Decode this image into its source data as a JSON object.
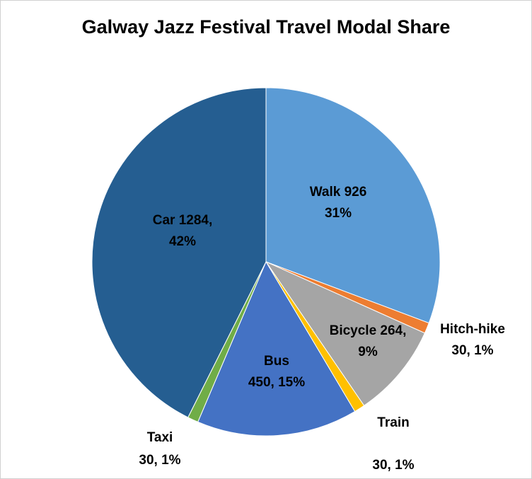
{
  "chart_data": {
    "type": "pie",
    "title": "Galway Jazz Festival Travel Modal Share",
    "values": [
      926,
      30,
      264,
      30,
      450,
      30,
      1284
    ],
    "value_labels": [
      [
        "Walk 926",
        "31%"
      ],
      [
        "Hitch-hike",
        "30, 1%"
      ],
      [
        "Bicycle 264,",
        "9%"
      ],
      [
        "Train",
        "30, 1%"
      ],
      [
        "Bus",
        "450, 15%"
      ],
      [
        "Taxi",
        "30, 1%"
      ],
      [
        "Car 1284,",
        "42%"
      ]
    ],
    "colors": [
      "#5b9bd5",
      "#ed7d31",
      "#a5a5a5",
      "#ffc000",
      "#4472c4",
      "#70ad47",
      "#255e91"
    ]
  }
}
